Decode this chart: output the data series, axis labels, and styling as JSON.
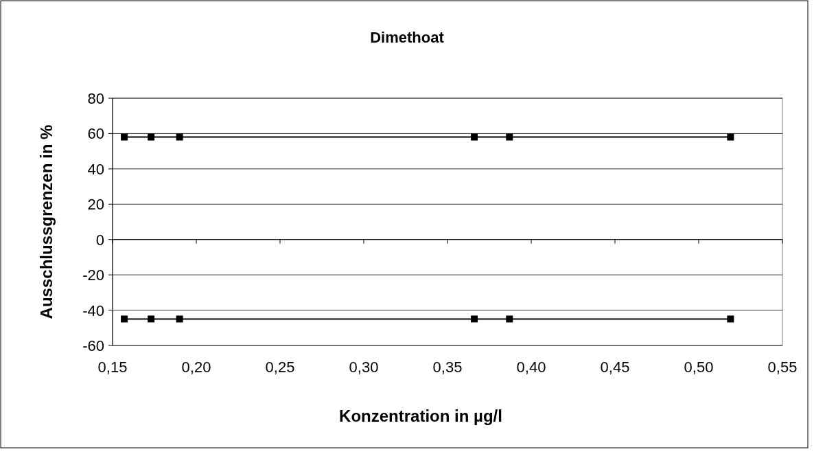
{
  "chart_data": {
    "type": "line",
    "title": "Dimethoat",
    "xlabel": "Konzentration in µg/l",
    "ylabel": "Ausschlussgrenzen in %",
    "x": [
      0.157,
      0.173,
      0.19,
      0.366,
      0.387,
      0.519
    ],
    "series": [
      {
        "color": "#000000",
        "values": [
          58,
          58,
          58,
          58,
          58,
          58
        ]
      },
      {
        "color": "#000000",
        "values": [
          -45,
          -45,
          -45,
          -45,
          -45,
          -45
        ]
      }
    ],
    "xlim": [
      0.15,
      0.55
    ],
    "xticks": [
      {
        "value": 0.15,
        "label": "0,15"
      },
      {
        "value": 0.2,
        "label": "0,20"
      },
      {
        "value": 0.25,
        "label": "0,25"
      },
      {
        "value": 0.3,
        "label": "0,30"
      },
      {
        "value": 0.35,
        "label": "0,35"
      },
      {
        "value": 0.4,
        "label": "0,40"
      },
      {
        "value": 0.45,
        "label": "0,45"
      },
      {
        "value": 0.5,
        "label": "0,50"
      },
      {
        "value": 0.55,
        "label": "0,55"
      }
    ],
    "ylim": [
      -60,
      80
    ],
    "yticks": [
      -60,
      -40,
      -20,
      0,
      20,
      40,
      60,
      80
    ],
    "grid": "y",
    "marker": "square",
    "line_style": "solid"
  }
}
